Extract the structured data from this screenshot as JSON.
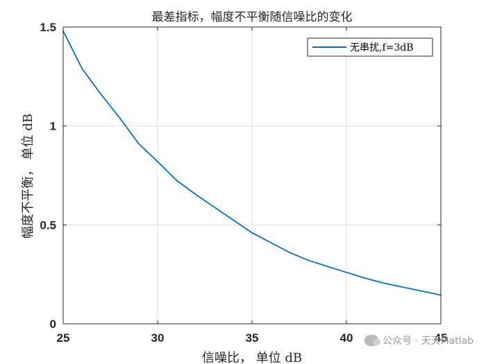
{
  "chart_data": {
    "type": "line",
    "title": "最差指标，幅度不平衡随信噪比的变化",
    "xlabel": "信噪比， 单位 dB",
    "ylabel": "幅度不平衡， 单位 dB",
    "xlim": [
      25,
      45
    ],
    "ylim": [
      0,
      1.5
    ],
    "x_ticks": [
      25,
      30,
      35,
      40,
      45
    ],
    "y_ticks": [
      0,
      0.5,
      1,
      1.5
    ],
    "x_tick_labels": [
      "25",
      "30",
      "35",
      "40",
      "45"
    ],
    "y_tick_labels": [
      "0",
      "0.5",
      "1",
      "1.5"
    ],
    "grid": true,
    "legend_position": "top-right",
    "series": [
      {
        "name": "无串扰,f=3dB",
        "color": "#0072BD",
        "x": [
          25,
          26,
          27,
          28,
          29,
          30,
          31,
          32,
          33,
          34,
          35,
          36,
          37,
          38,
          39,
          40,
          41,
          42,
          43,
          44,
          45
        ],
        "y": [
          1.48,
          1.29,
          1.16,
          1.04,
          0.91,
          0.82,
          0.725,
          0.655,
          0.59,
          0.525,
          0.46,
          0.41,
          0.36,
          0.32,
          0.29,
          0.26,
          0.23,
          0.205,
          0.185,
          0.165,
          0.145
        ]
      }
    ]
  },
  "watermark": {
    "icon": "wechat-icon",
    "text": "公众号 · 天天Matlab"
  }
}
